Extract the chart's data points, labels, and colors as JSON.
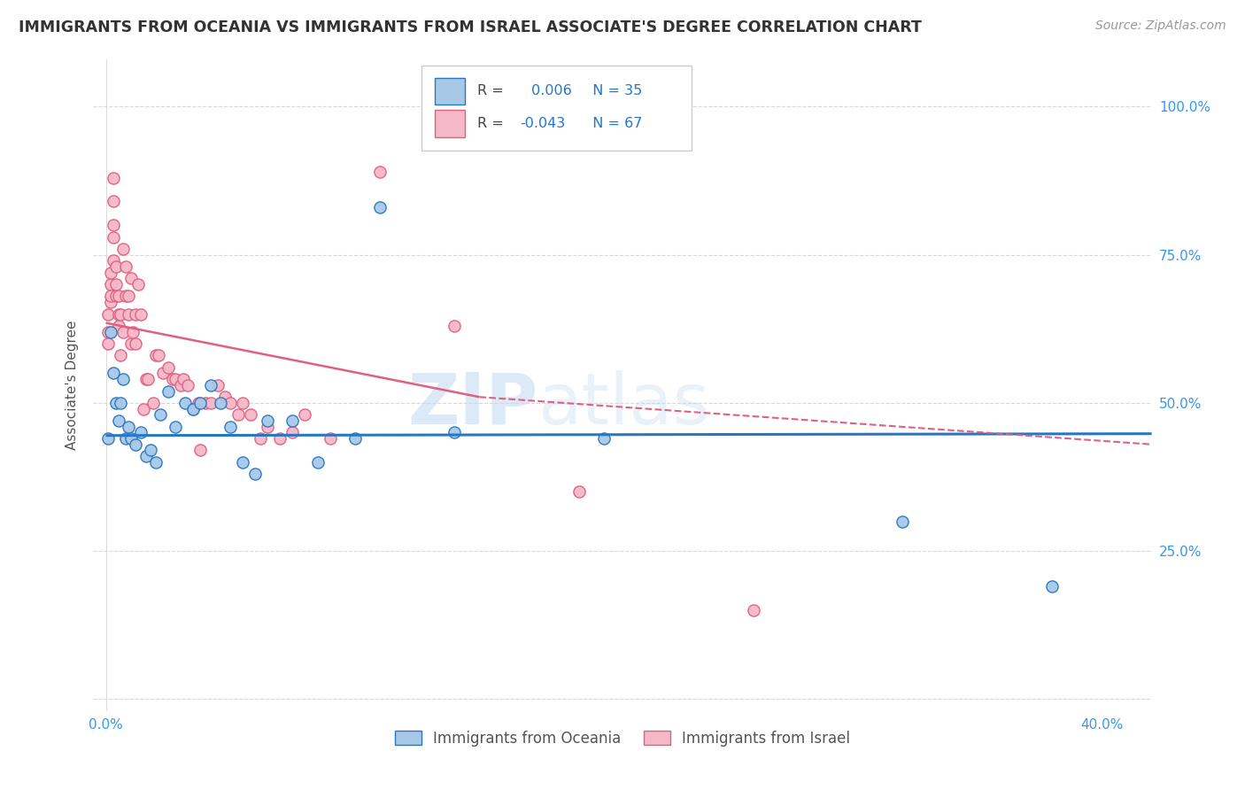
{
  "title": "IMMIGRANTS FROM OCEANIA VS IMMIGRANTS FROM ISRAEL ASSOCIATE'S DEGREE CORRELATION CHART",
  "source": "Source: ZipAtlas.com",
  "ylabel": "Associate's Degree",
  "x_ticks": [
    0.0,
    0.1,
    0.2,
    0.3,
    0.4
  ],
  "x_tick_labels": [
    "0.0%",
    "",
    "",
    "",
    "40.0%"
  ],
  "y_ticks": [
    0.0,
    0.25,
    0.5,
    0.75,
    1.0
  ],
  "y_tick_labels_right": [
    "",
    "25.0%",
    "50.0%",
    "75.0%",
    "100.0%"
  ],
  "xlim": [
    -0.005,
    0.42
  ],
  "ylim": [
    -0.02,
    1.08
  ],
  "R_oceania": 0.006,
  "N_oceania": 35,
  "R_israel": -0.043,
  "N_israel": 67,
  "color_oceania": "#a8c8e8",
  "color_israel": "#f5b8c8",
  "line_color_oceania": "#2878c0",
  "line_color_israel": "#e06080",
  "watermark_zip": "ZIP",
  "watermark_atlas": "atlas",
  "background_color": "#ffffff",
  "grid_color": "#d8d8d8",
  "oceania_x": [
    0.001,
    0.002,
    0.003,
    0.004,
    0.005,
    0.006,
    0.007,
    0.008,
    0.009,
    0.01,
    0.012,
    0.014,
    0.016,
    0.018,
    0.02,
    0.022,
    0.025,
    0.028,
    0.032,
    0.035,
    0.038,
    0.042,
    0.046,
    0.05,
    0.055,
    0.06,
    0.065,
    0.075,
    0.085,
    0.1,
    0.11,
    0.14,
    0.2,
    0.32,
    0.38
  ],
  "oceania_y": [
    0.44,
    0.62,
    0.55,
    0.5,
    0.47,
    0.5,
    0.54,
    0.44,
    0.46,
    0.44,
    0.43,
    0.45,
    0.41,
    0.42,
    0.4,
    0.48,
    0.52,
    0.46,
    0.5,
    0.49,
    0.5,
    0.53,
    0.5,
    0.46,
    0.4,
    0.38,
    0.47,
    0.47,
    0.4,
    0.44,
    0.83,
    0.45,
    0.44,
    0.3,
    0.19
  ],
  "israel_x": [
    0.001,
    0.001,
    0.001,
    0.002,
    0.002,
    0.002,
    0.002,
    0.003,
    0.003,
    0.003,
    0.003,
    0.003,
    0.004,
    0.004,
    0.004,
    0.005,
    0.005,
    0.005,
    0.006,
    0.006,
    0.007,
    0.007,
    0.008,
    0.008,
    0.009,
    0.009,
    0.01,
    0.01,
    0.011,
    0.012,
    0.012,
    0.013,
    0.014,
    0.015,
    0.016,
    0.017,
    0.019,
    0.02,
    0.021,
    0.023,
    0.025,
    0.027,
    0.028,
    0.03,
    0.031,
    0.033,
    0.035,
    0.037,
    0.038,
    0.04,
    0.042,
    0.045,
    0.048,
    0.05,
    0.053,
    0.055,
    0.058,
    0.062,
    0.065,
    0.07,
    0.075,
    0.08,
    0.09,
    0.11,
    0.14,
    0.19,
    0.26
  ],
  "israel_y": [
    0.62,
    0.6,
    0.65,
    0.7,
    0.67,
    0.72,
    0.68,
    0.8,
    0.78,
    0.84,
    0.88,
    0.74,
    0.68,
    0.73,
    0.7,
    0.65,
    0.63,
    0.68,
    0.65,
    0.58,
    0.62,
    0.76,
    0.68,
    0.73,
    0.65,
    0.68,
    0.71,
    0.6,
    0.62,
    0.6,
    0.65,
    0.7,
    0.65,
    0.49,
    0.54,
    0.54,
    0.5,
    0.58,
    0.58,
    0.55,
    0.56,
    0.54,
    0.54,
    0.53,
    0.54,
    0.53,
    0.49,
    0.5,
    0.42,
    0.5,
    0.5,
    0.53,
    0.51,
    0.5,
    0.48,
    0.5,
    0.48,
    0.44,
    0.46,
    0.44,
    0.45,
    0.48,
    0.44,
    0.89,
    0.63,
    0.35,
    0.15
  ],
  "trend_oceania_x0": 0.0,
  "trend_oceania_x1": 0.42,
  "trend_oceania_y0": 0.445,
  "trend_oceania_y1": 0.448,
  "trend_israel_solid_x0": 0.0,
  "trend_israel_solid_x1": 0.15,
  "trend_israel_dashed_x0": 0.15,
  "trend_israel_dashed_x1": 0.42,
  "trend_israel_y0": 0.635,
  "trend_israel_y1": 0.51,
  "trend_israel_y2": 0.43
}
